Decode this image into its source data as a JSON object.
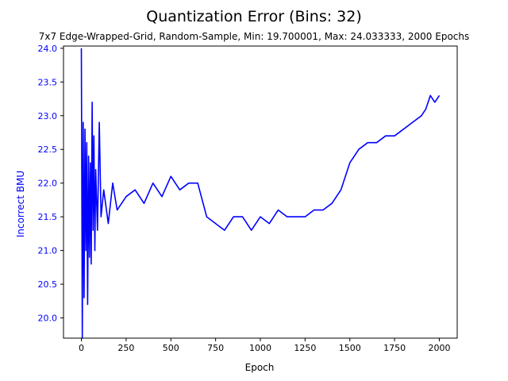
{
  "figure": {
    "title": "Quantization Error (Bins: 32)",
    "subtitle": "7x7 Edge-Wrapped-Grid, Random-Sample, Min: 19.700001, Max: 24.033333, 2000 Epochs"
  },
  "colors": {
    "line": "#0000ff",
    "ylabel": "#0000ff",
    "ytick": "#0000ff",
    "axis": "#000000",
    "background": "#ffffff"
  },
  "chart_data": {
    "type": "line",
    "title": "Quantization Error (Bins: 32)",
    "subtitle": "7x7 Edge-Wrapped-Grid, Random-Sample, Min: 19.700001, Max: 24.033333, 2000 Epochs",
    "xlabel": "Epoch",
    "ylabel": "Incorrect BMU",
    "xlim": [
      -100,
      2100
    ],
    "ylim": [
      19.7,
      24.033333
    ],
    "xticks": [
      0,
      250,
      500,
      750,
      1000,
      1250,
      1500,
      1750,
      2000
    ],
    "yticks": [
      20.0,
      20.5,
      21.0,
      21.5,
      22.0,
      22.5,
      23.0,
      23.5,
      24.0
    ],
    "xtick_labels": [
      "0",
      "250",
      "500",
      "750",
      "1000",
      "1250",
      "1500",
      "1750",
      "2000"
    ],
    "ytick_labels": [
      "20.0",
      "20.5",
      "21.0",
      "21.5",
      "22.0",
      "22.5",
      "23.0",
      "23.5",
      "24.0"
    ],
    "grid": false,
    "series": [
      {
        "x": [
          0,
          5,
          10,
          15,
          20,
          25,
          30,
          35,
          40,
          45,
          50,
          55,
          60,
          65,
          70,
          75,
          80,
          90,
          100,
          110,
          125,
          150,
          175,
          200,
          250,
          300,
          350,
          400,
          450,
          500,
          550,
          600,
          650,
          700,
          750,
          800,
          850,
          900,
          950,
          1000,
          1050,
          1100,
          1150,
          1200,
          1250,
          1300,
          1350,
          1400,
          1450,
          1500,
          1550,
          1600,
          1650,
          1700,
          1750,
          1800,
          1850,
          1900,
          1925,
          1950,
          1975,
          2000
        ],
        "y": [
          24.0,
          19.7,
          22.9,
          20.3,
          22.8,
          21.0,
          22.6,
          20.2,
          22.4,
          20.9,
          22.3,
          20.8,
          23.2,
          21.3,
          22.7,
          21.0,
          22.2,
          21.3,
          22.9,
          21.5,
          21.9,
          21.4,
          22.0,
          21.6,
          21.8,
          21.9,
          21.7,
          22.0,
          21.8,
          22.1,
          21.9,
          22.0,
          22.0,
          21.5,
          21.4,
          21.3,
          21.5,
          21.5,
          21.3,
          21.5,
          21.4,
          21.6,
          21.5,
          21.5,
          21.5,
          21.6,
          21.6,
          21.7,
          21.9,
          22.3,
          22.5,
          22.6,
          22.6,
          22.7,
          22.7,
          22.8,
          22.9,
          23.0,
          23.1,
          23.3,
          23.2,
          23.3
        ]
      }
    ]
  }
}
